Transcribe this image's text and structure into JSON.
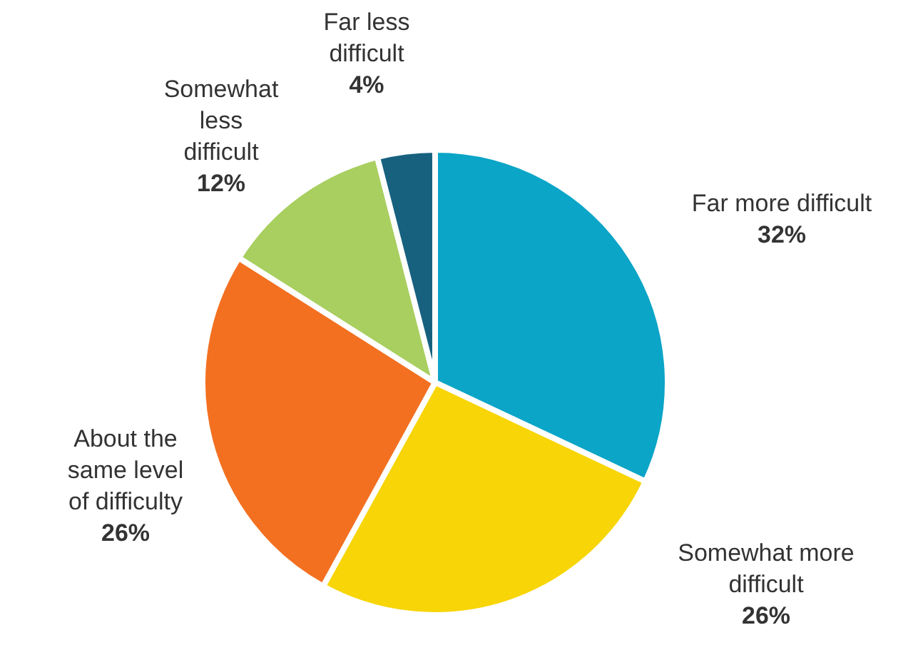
{
  "chart_data": {
    "type": "pie",
    "categories": [
      "Far more difficult",
      "Somewhat more difficult",
      "About the same level of difficulty",
      "Somewhat less difficult",
      "Far less difficult"
    ],
    "values": [
      32,
      26,
      26,
      12,
      4
    ],
    "colors": [
      "#0ba5c7",
      "#f7d507",
      "#f37021",
      "#a8cf5f",
      "#17617f"
    ],
    "value_labels": [
      "32%",
      "26%",
      "26%",
      "12%",
      "4%"
    ],
    "legend": false
  }
}
